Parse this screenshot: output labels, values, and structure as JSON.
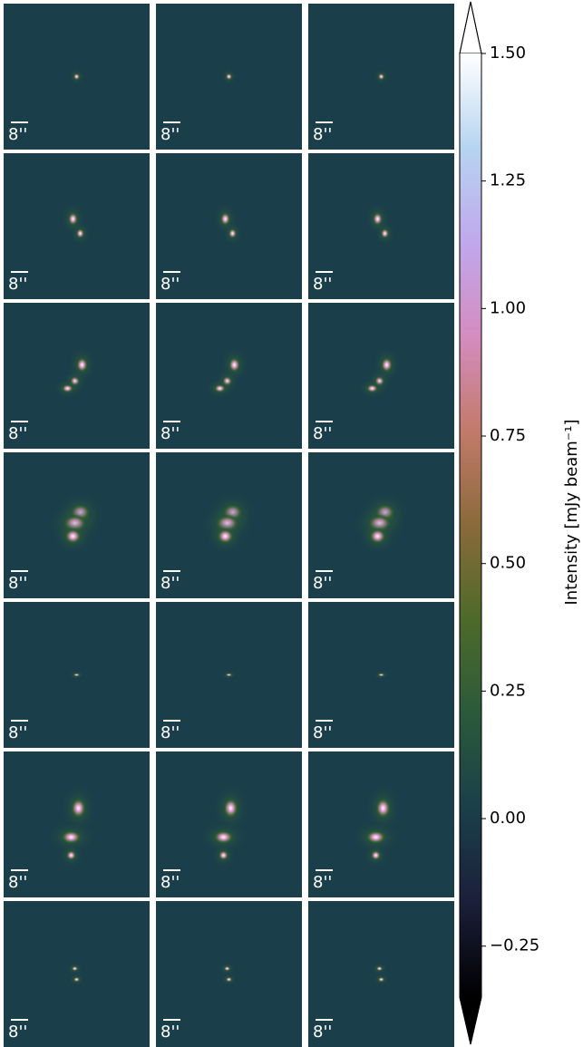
{
  "chart_data": {
    "type": "image_grid",
    "panels": [
      {
        "scale_label": "8''"
      },
      {
        "scale_label": "8''"
      },
      {
        "scale_label": "8''"
      },
      {
        "scale_label": "8''"
      },
      {
        "scale_label": "8''"
      },
      {
        "scale_label": "8''"
      },
      {
        "scale_label": "8''"
      },
      {
        "scale_label": "8''"
      },
      {
        "scale_label": "8''"
      },
      {
        "scale_label": "8''"
      },
      {
        "scale_label": "8''"
      },
      {
        "scale_label": "8''"
      },
      {
        "scale_label": "8''"
      },
      {
        "scale_label": "8''"
      },
      {
        "scale_label": "8''"
      },
      {
        "scale_label": "8''"
      },
      {
        "scale_label": "8''"
      },
      {
        "scale_label": "8''"
      },
      {
        "scale_label": "8''"
      },
      {
        "scale_label": "8''"
      },
      {
        "scale_label": "8''"
      }
    ],
    "colorbar": {
      "label": "Intensity [mJy beam⁻¹]",
      "lim": [
        -0.35,
        1.5
      ],
      "extend": "both",
      "colormap": [
        "#000000",
        "#1b1f3a",
        "#1a3f4a",
        "#2a5a3a",
        "#4d6a2a",
        "#8a6a3a",
        "#c27a6a",
        "#d48cc0",
        "#c0a8ec",
        "#b6d4f0",
        "#ffffff"
      ],
      "ticks": [
        {
          "value": -0.25,
          "label": "−0.25"
        },
        {
          "value": 0,
          "label": "0.00"
        },
        0.25,
        {
          "value": 0.5,
          "label": "0.50"
        },
        0.75,
        {
          "value": 1,
          "label": "1.00"
        },
        1.25,
        {
          "value": 1.5,
          "label": "1.50"
        }
      ]
    }
  }
}
